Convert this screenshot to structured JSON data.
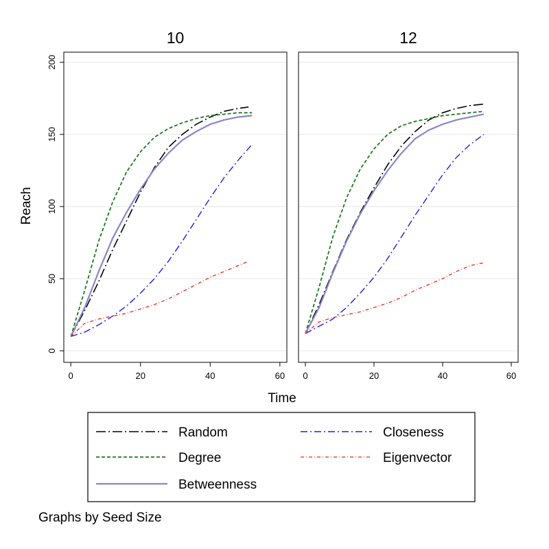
{
  "chart_data": {
    "type": "line",
    "xlabel": "Time",
    "ylabel": "Reach",
    "xlim": [
      -2,
      62
    ],
    "ylim": [
      -8,
      207
    ],
    "xticks": [
      0,
      20,
      40,
      60
    ],
    "yticks": [
      0,
      50,
      100,
      150,
      200
    ],
    "grid": true,
    "legend_position": "bottom",
    "note": "Graphs by Seed Size",
    "series_style": [
      {
        "name": "Random",
        "color": "#000000",
        "dash": "14 4 2 4",
        "width": 1.6
      },
      {
        "name": "Degree",
        "color": "#1a7a1a",
        "dash": "5 3",
        "width": 1.8
      },
      {
        "name": "Betweenness",
        "color": "#8a85c9",
        "dash": "",
        "width": 2.2
      },
      {
        "name": "Closeness",
        "color": "#1a1aee",
        "dash": "10 4 2 4",
        "width": 1.4
      },
      {
        "name": "Eigenvector",
        "color": "#e8281e",
        "dash": "5 3 1 3",
        "width": 1.3
      }
    ],
    "panels": [
      {
        "title": "10",
        "series": [
          {
            "name": "Random",
            "x": [
              0,
              4,
              8,
              12,
              16,
              20,
              24,
              28,
              32,
              36,
              40,
              44,
              48,
              51
            ],
            "y": [
              10,
              28,
              48,
              70,
              90,
              110,
              127,
              141,
              150,
              157,
              162,
              166,
              168,
              169
            ]
          },
          {
            "name": "Degree",
            "x": [
              0,
              4,
              8,
              12,
              16,
              20,
              24,
              28,
              32,
              36,
              40,
              44,
              48,
              52
            ],
            "y": [
              10,
              42,
              76,
              103,
              124,
              138,
              148,
              154,
              158,
              161,
              163,
              164,
              165,
              165
            ]
          },
          {
            "name": "Betweenness",
            "x": [
              0,
              4,
              8,
              12,
              16,
              20,
              24,
              28,
              32,
              36,
              40,
              44,
              48,
              52
            ],
            "y": [
              10,
              30,
              55,
              78,
              96,
              112,
              126,
              137,
              146,
              152,
              157,
              160,
              162,
              163
            ]
          },
          {
            "name": "Closeness",
            "x": [
              0,
              4,
              8,
              12,
              16,
              20,
              24,
              28,
              32,
              36,
              40,
              44,
              48,
              52
            ],
            "y": [
              10,
              13,
              18,
              24,
              31,
              40,
              50,
              62,
              76,
              91,
              106,
              120,
              132,
              143
            ]
          },
          {
            "name": "Eigenvector",
            "x": [
              0,
              4,
              8,
              12,
              16,
              20,
              24,
              28,
              32,
              36,
              40,
              44,
              48,
              51
            ],
            "y": [
              10,
              19,
              22,
              24,
              26,
              29,
              32,
              36,
              41,
              46,
              51,
              55,
              59,
              62
            ]
          }
        ]
      },
      {
        "title": "12",
        "series": [
          {
            "name": "Random",
            "x": [
              0,
              4,
              8,
              12,
              16,
              20,
              24,
              28,
              32,
              36,
              40,
              44,
              48,
              52
            ],
            "y": [
              12,
              32,
              55,
              77,
              96,
              113,
              129,
              142,
              152,
              160,
              165,
              168,
              170,
              171
            ]
          },
          {
            "name": "Degree",
            "x": [
              0,
              4,
              8,
              12,
              16,
              20,
              24,
              28,
              32,
              36,
              40,
              44,
              48,
              52
            ],
            "y": [
              12,
              44,
              79,
              106,
              126,
              140,
              150,
              156,
              159,
              161,
              163,
              164,
              165,
              166
            ]
          },
          {
            "name": "Betweenness",
            "x": [
              0,
              4,
              8,
              12,
              16,
              20,
              24,
              28,
              32,
              36,
              40,
              44,
              48,
              52
            ],
            "y": [
              12,
              30,
              54,
              76,
              95,
              111,
              125,
              137,
              147,
              153,
              157,
              160,
              162,
              164
            ]
          },
          {
            "name": "Closeness",
            "x": [
              0,
              4,
              8,
              12,
              16,
              20,
              24,
              28,
              32,
              36,
              40,
              44,
              48,
              52
            ],
            "y": [
              12,
              17,
              22,
              30,
              40,
              51,
              64,
              79,
              94,
              108,
              122,
              134,
              143,
              150
            ]
          },
          {
            "name": "Eigenvector",
            "x": [
              0,
              4,
              8,
              12,
              16,
              20,
              24,
              28,
              32,
              36,
              40,
              44,
              48,
              52
            ],
            "y": [
              12,
              20,
              23,
              25,
              27,
              30,
              33,
              37,
              42,
              46,
              50,
              55,
              59,
              61
            ]
          }
        ]
      }
    ]
  }
}
